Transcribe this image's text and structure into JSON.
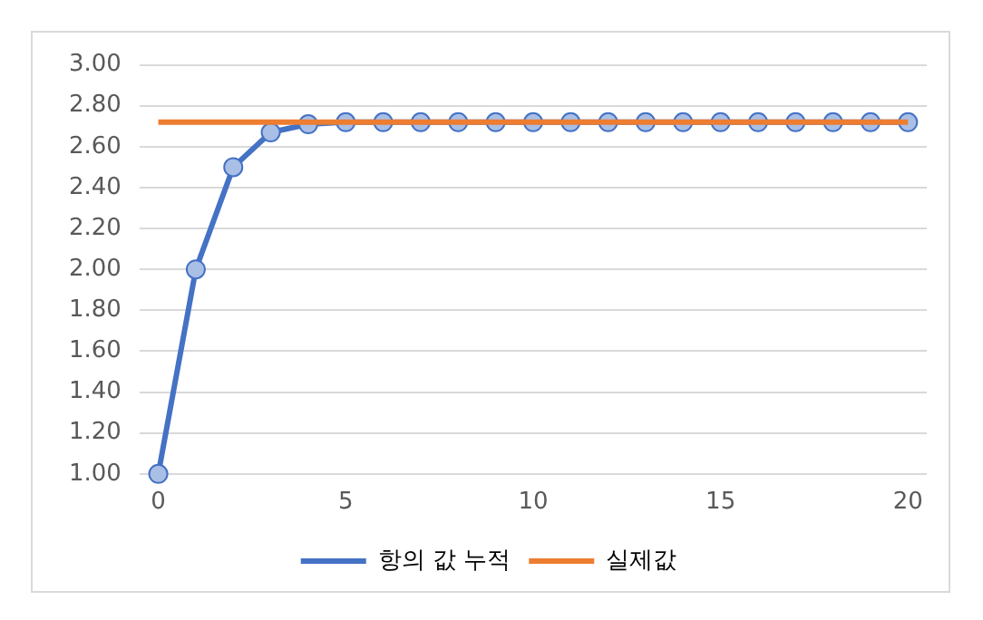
{
  "chart_data": {
    "type": "line",
    "categories": [
      "0",
      null,
      null,
      null,
      null,
      "5",
      null,
      null,
      null,
      null,
      "10",
      null,
      null,
      null,
      null,
      "15",
      null,
      null,
      null,
      null,
      "20"
    ],
    "series": [
      {
        "name": "항의 값 누적",
        "color": "#4472c4",
        "marker": "circle",
        "values": [
          1,
          2,
          2.5,
          2.67,
          2.71,
          2.72,
          2.72,
          2.72,
          2.72,
          2.72,
          2.72,
          2.72,
          2.72,
          2.72,
          2.72,
          2.72,
          2.72,
          2.72,
          2.72,
          2.72,
          2.72
        ]
      },
      {
        "name": "실제값",
        "color": "#ed7d31",
        "marker": "none",
        "values": [
          2.72,
          2.72,
          2.72,
          2.72,
          2.72,
          2.72,
          2.72,
          2.72,
          2.72,
          2.72,
          2.72,
          2.72,
          2.72,
          2.72,
          2.72,
          2.72,
          2.72,
          2.72,
          2.72,
          2.72,
          2.72
        ]
      }
    ],
    "ylim": [
      1,
      3
    ],
    "yticks": [
      {
        "value": 1,
        "label": "1.00"
      },
      {
        "value": 1.2,
        "label": "1.20"
      },
      {
        "value": 1.4,
        "label": "1.40"
      },
      {
        "value": 1.6,
        "label": "1.60"
      },
      {
        "value": 1.8,
        "label": "1.80"
      },
      {
        "value": 2,
        "label": "2.00"
      },
      {
        "value": 2.2,
        "label": "2.20"
      },
      {
        "value": 2.4,
        "label": "2.40"
      },
      {
        "value": 2.6,
        "label": "2.60"
      },
      {
        "value": 2.8,
        "label": "2.80"
      },
      {
        "value": 3,
        "label": "3.00"
      }
    ],
    "grid": "y",
    "legend": "bottom"
  }
}
